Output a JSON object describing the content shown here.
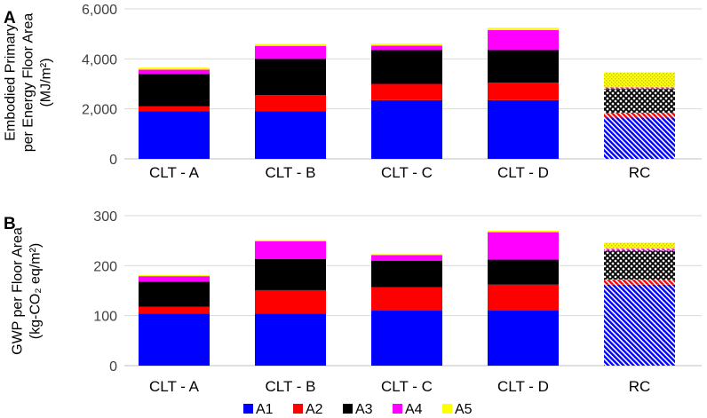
{
  "legend": [
    {
      "key": "A1",
      "label": "A1",
      "color": "#0000ff"
    },
    {
      "key": "A2",
      "label": "A2",
      "color": "#ff0000"
    },
    {
      "key": "A3",
      "label": "A3",
      "color": "#000000"
    },
    {
      "key": "A4",
      "label": "A4",
      "color": "#ff00ff"
    },
    {
      "key": "A5",
      "label": "A5",
      "color": "#ffff00"
    }
  ],
  "chart_data": [
    {
      "type": "bar",
      "stacked": true,
      "panel_label": "A",
      "ylabel_lines": [
        "Embodied Primary",
        "per Energy Floor Area",
        "(MJ/m²)"
      ],
      "categories": [
        "CLT - A",
        "CLT - B",
        "CLT - C",
        "CLT - D",
        "RC"
      ],
      "hatched_categories": [
        "RC"
      ],
      "ylim": [
        0,
        6000
      ],
      "yticks": [
        0,
        2000,
        4000,
        6000
      ],
      "ytick_labels": [
        "0",
        "2,000",
        "4,000",
        "6,000"
      ],
      "grid": true,
      "series": [
        {
          "name": "A1",
          "values": [
            1900,
            1900,
            2350,
            2350,
            1650
          ]
        },
        {
          "name": "A2",
          "values": [
            200,
            650,
            650,
            700,
            200
          ]
        },
        {
          "name": "A3",
          "values": [
            1300,
            1450,
            1350,
            1300,
            950
          ]
        },
        {
          "name": "A4",
          "values": [
            170,
            520,
            180,
            800,
            60
          ]
        },
        {
          "name": "A5",
          "values": [
            80,
            80,
            80,
            100,
            600
          ]
        }
      ]
    },
    {
      "type": "bar",
      "stacked": true,
      "panel_label": "B",
      "ylabel_lines": [
        "GWP per Floor Area",
        "(kg-CO₂ eq/m²)"
      ],
      "categories": [
        "CLT - A",
        "CLT - B",
        "CLT - C",
        "CLT - D",
        "RC"
      ],
      "hatched_categories": [
        "RC"
      ],
      "ylim": [
        0,
        300
      ],
      "yticks": [
        0,
        100,
        200,
        300
      ],
      "ytick_labels": [
        "0",
        "100",
        "200",
        "300"
      ],
      "grid": true,
      "series": [
        {
          "name": "A1",
          "values": [
            104,
            104,
            110,
            110,
            162
          ]
        },
        {
          "name": "A2",
          "values": [
            14,
            47,
            47,
            52,
            10
          ]
        },
        {
          "name": "A3",
          "values": [
            50,
            62,
            53,
            50,
            58
          ]
        },
        {
          "name": "A4",
          "values": [
            11,
            36,
            11,
            55,
            4
          ]
        },
        {
          "name": "A5",
          "values": [
            2,
            2,
            2,
            3,
            12
          ]
        }
      ]
    }
  ]
}
